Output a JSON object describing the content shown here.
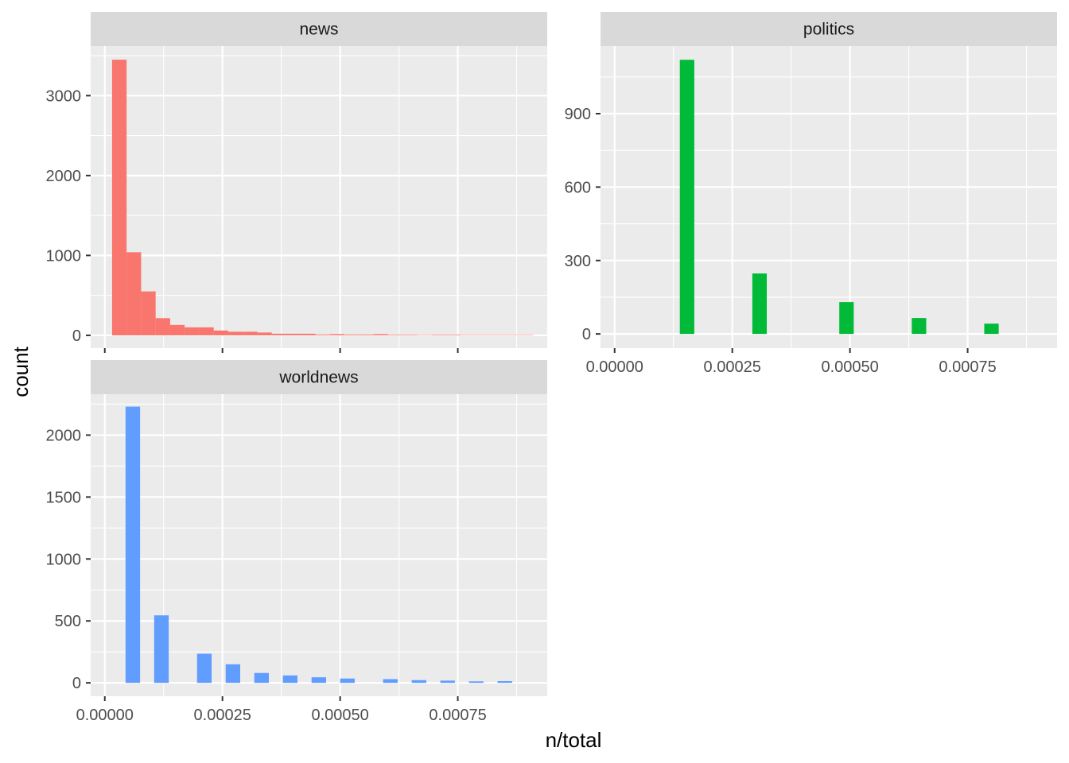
{
  "chart_data": {
    "type": "histogram-facets",
    "xlabel": "n/total",
    "ylabel": "count",
    "colors": {
      "news": "#F8766D",
      "politics": "#00BA38",
      "worldnews": "#619CFF"
    },
    "x_ticks": [
      0.0,
      0.00025,
      0.0005,
      0.00075
    ],
    "x_tick_labels": [
      "0.00000",
      "0.00025",
      "0.00050",
      "0.00075"
    ],
    "xlim": [
      -3e-05,
      0.00094
    ],
    "facets": [
      {
        "name": "news",
        "ylim": [
          -160,
          3620
        ],
        "y_ticks": [
          0,
          1000,
          2000,
          3000
        ],
        "y_tick_labels": [
          "0",
          "1000",
          "2000",
          "3000"
        ],
        "show_x_axis": false,
        "bins": [
          {
            "x0": 1.547e-05,
            "x1": 4.632e-05,
            "count": 3450
          },
          {
            "x0": 4.632e-05,
            "x1": 7.717e-05,
            "count": 1040
          },
          {
            "x0": 7.717e-05,
            "x1": 0.00010802,
            "count": 550
          },
          {
            "x0": 0.00010802,
            "x1": 0.00013887,
            "count": 215
          },
          {
            "x0": 0.00013887,
            "x1": 0.00016972,
            "count": 130
          },
          {
            "x0": 0.00016972,
            "x1": 0.00020057,
            "count": 100
          },
          {
            "x0": 0.00020057,
            "x1": 0.00023142,
            "count": 100
          },
          {
            "x0": 0.00023142,
            "x1": 0.00026227,
            "count": 60
          },
          {
            "x0": 0.00026227,
            "x1": 0.00029312,
            "count": 45
          },
          {
            "x0": 0.00029312,
            "x1": 0.00032397,
            "count": 45
          },
          {
            "x0": 0.00032397,
            "x1": 0.00035482,
            "count": 35
          },
          {
            "x0": 0.00035482,
            "x1": 0.00038567,
            "count": 20
          },
          {
            "x0": 0.00038567,
            "x1": 0.00041652,
            "count": 20
          },
          {
            "x0": 0.00041652,
            "x1": 0.00044737,
            "count": 20
          },
          {
            "x0": 0.00044737,
            "x1": 0.00047822,
            "count": 10
          },
          {
            "x0": 0.00047822,
            "x1": 0.00050907,
            "count": 15
          },
          {
            "x0": 0.00050907,
            "x1": 0.00053992,
            "count": 10
          },
          {
            "x0": 0.00053992,
            "x1": 0.00057077,
            "count": 10
          },
          {
            "x0": 0.00057077,
            "x1": 0.00060162,
            "count": 15
          },
          {
            "x0": 0.00060162,
            "x1": 0.00063247,
            "count": 8
          },
          {
            "x0": 0.00063247,
            "x1": 0.00066332,
            "count": 8
          },
          {
            "x0": 0.00066332,
            "x1": 0.00069417,
            "count": 5
          },
          {
            "x0": 0.00069417,
            "x1": 0.00072502,
            "count": 8
          },
          {
            "x0": 0.00072502,
            "x1": 0.00075587,
            "count": 8
          },
          {
            "x0": 0.00075587,
            "x1": 0.00078672,
            "count": 5
          },
          {
            "x0": 0.00078672,
            "x1": 0.00081757,
            "count": 5
          },
          {
            "x0": 0.00081757,
            "x1": 0.00084842,
            "count": 5
          },
          {
            "x0": 0.00084842,
            "x1": 0.00087927,
            "count": 5
          },
          {
            "x0": 0.00087927,
            "x1": 0.00091012,
            "count": 5
          }
        ]
      },
      {
        "name": "politics",
        "ylim": [
          -58,
          1176
        ],
        "y_ticks": [
          0,
          300,
          600,
          900
        ],
        "y_tick_labels": [
          "0",
          "300",
          "600",
          "900"
        ],
        "show_x_axis": true,
        "bins": [
          {
            "x0": 0.0001385,
            "x1": 0.0001692,
            "count": 1120
          },
          {
            "x0": 0.0002925,
            "x1": 0.0003232,
            "count": 247
          },
          {
            "x0": 0.0004773,
            "x1": 0.000508,
            "count": 130
          },
          {
            "x0": 0.0006313,
            "x1": 0.000662,
            "count": 65
          },
          {
            "x0": 0.0007853,
            "x1": 0.000816,
            "count": 42
          }
        ]
      },
      {
        "name": "worldnews",
        "ylim": [
          -108,
          2330
        ],
        "y_ticks": [
          0,
          500,
          1000,
          1500,
          2000
        ],
        "y_tick_labels": [
          "0",
          "500",
          "1000",
          "1500",
          "2000"
        ],
        "show_x_axis": true,
        "bins": [
          {
            "x0": 4.406e-05,
            "x1": 7.496e-05,
            "count": 2230
          },
          {
            "x0": 0.00010487,
            "x1": 0.00013577,
            "count": 545
          },
          {
            "x0": 0.00019603,
            "x1": 0.00022693,
            "count": 235
          },
          {
            "x0": 0.00025683,
            "x1": 0.00028773,
            "count": 150
          },
          {
            "x0": 0.00031764,
            "x1": 0.00034854,
            "count": 80
          },
          {
            "x0": 0.00037844,
            "x1": 0.00040934,
            "count": 60
          },
          {
            "x0": 0.00043925,
            "x1": 0.00047015,
            "count": 45
          },
          {
            "x0": 0.00050005,
            "x1": 0.00053095,
            "count": 35
          },
          {
            "x0": 0.00059126,
            "x1": 0.00062216,
            "count": 30
          },
          {
            "x0": 0.00065207,
            "x1": 0.00068297,
            "count": 22
          },
          {
            "x0": 0.00071287,
            "x1": 0.00074377,
            "count": 18
          },
          {
            "x0": 0.00077368,
            "x1": 0.00080458,
            "count": 12
          },
          {
            "x0": 0.00083448,
            "x1": 0.00086538,
            "count": 14
          }
        ]
      }
    ]
  }
}
